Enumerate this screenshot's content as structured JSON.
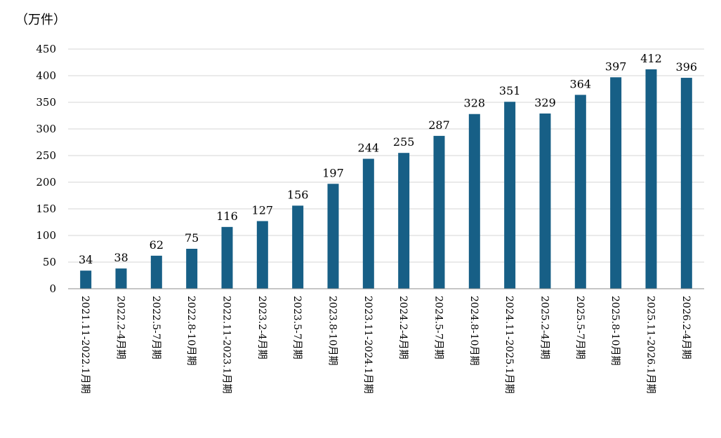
{
  "chart_data": {
    "type": "bar",
    "unit_label": "（万件）",
    "categories": [
      "2021.11-2022.1月期",
      "2022.2-4月期",
      "2022.5-7月期",
      "2022.8-10月期",
      "2022.11-2023.1月期",
      "2023.2-4月期",
      "2023.5-7月期",
      "2023.8-10月期",
      "2023.11-2024.1月期",
      "2024.2-4月期",
      "2024.5-7月期",
      "2024.8-10月期",
      "2024.11-2025.1月期",
      "2025.2-4月期",
      "2025.5-7月期",
      "2025.8-10月期",
      "2025.11-2026.1月期",
      "2026.2-4月期"
    ],
    "values": [
      34,
      38,
      62,
      75,
      116,
      127,
      156,
      197,
      244,
      255,
      287,
      328,
      351,
      329,
      364,
      397,
      412,
      396
    ],
    "ylim": [
      0,
      450
    ],
    "yticks": [
      0,
      50,
      100,
      150,
      200,
      250,
      300,
      350,
      400,
      450
    ],
    "grid": true,
    "legend": "none",
    "bar_color": "#175f86"
  }
}
